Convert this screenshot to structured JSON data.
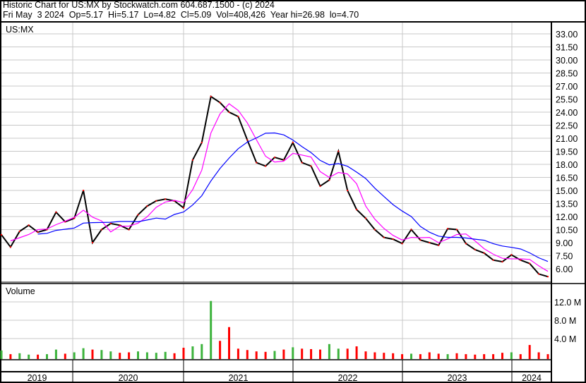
{
  "header": {
    "line1": "Historic Chart for US:MX by Stockwatch.com 604.687.1500 - (c) 2024",
    "line2": "Fri May  3 2024  Op=5.17  Hi=5.17  Lo=4.82  Cl=5.09  Vol=408,426  Year hi=26.98  lo=4.70"
  },
  "chart_data": {
    "type": "line",
    "symbol": "US:MX",
    "price_axis": {
      "ticks": [
        "33.00",
        "31.50",
        "30.00",
        "28.50",
        "27.00",
        "25.50",
        "24.00",
        "22.50",
        "21.00",
        "19.50",
        "18.00",
        "16.50",
        "15.00",
        "13.50",
        "12.00",
        "10.50",
        "9.00",
        "7.50",
        "6.00"
      ],
      "ylim": [
        4.5,
        33.0
      ],
      "grid": true
    },
    "x_axis": {
      "ticks": [
        "2019",
        "2020",
        "2021",
        "2022",
        "2023",
        "2024"
      ]
    },
    "x": [
      "2019-05",
      "2019-06",
      "2019-07",
      "2019-08",
      "2019-09",
      "2019-10",
      "2019-11",
      "2019-12",
      "2020-01",
      "2020-02",
      "2020-03",
      "2020-04",
      "2020-05",
      "2020-06",
      "2020-07",
      "2020-08",
      "2020-09",
      "2020-10",
      "2020-11",
      "2020-12",
      "2021-01",
      "2021-02",
      "2021-03",
      "2021-04",
      "2021-05",
      "2021-06",
      "2021-07",
      "2021-08",
      "2021-09",
      "2021-10",
      "2021-11",
      "2021-12",
      "2022-01",
      "2022-02",
      "2022-03",
      "2022-04",
      "2022-05",
      "2022-06",
      "2022-07",
      "2022-08",
      "2022-09",
      "2022-10",
      "2022-11",
      "2022-12",
      "2023-01",
      "2023-02",
      "2023-03",
      "2023-04",
      "2023-05",
      "2023-06",
      "2023-07",
      "2023-08",
      "2023-09",
      "2023-10",
      "2023-11",
      "2023-12",
      "2024-01",
      "2024-02",
      "2024-03",
      "2024-04",
      "2024-05"
    ],
    "close": [
      9.9,
      8.5,
      10.3,
      11.0,
      10.2,
      10.5,
      12.5,
      11.4,
      11.8,
      15.0,
      9.0,
      10.5,
      11.2,
      11.0,
      10.5,
      12.2,
      13.2,
      13.8,
      14.0,
      13.8,
      13.0,
      18.5,
      20.5,
      25.8,
      25.1,
      24.0,
      23.5,
      20.8,
      18.2,
      17.8,
      18.8,
      18.5,
      20.5,
      18.2,
      17.8,
      15.5,
      16.2,
      19.5,
      15.0,
      12.8,
      11.8,
      10.5,
      9.6,
      9.4,
      8.9,
      10.5,
      9.3,
      9.0,
      8.7,
      10.6,
      10.5,
      8.9,
      8.2,
      7.8,
      7.0,
      6.8,
      7.6,
      7.0,
      6.6,
      5.4,
      5.09
    ],
    "moving_average_colors": {
      "short": "#ff00ff",
      "long": "#0000ff"
    },
    "volume": {
      "title": "Volume",
      "ticks": [
        "12.0 M",
        "8.0 M",
        "4.0 M"
      ],
      "ylim_millions": [
        0,
        16
      ],
      "values_millions": [
        1.4,
        0.6,
        0.8,
        0.5,
        0.5,
        0.6,
        1.6,
        0.7,
        1.0,
        1.9,
        1.6,
        1.5,
        1.2,
        0.9,
        1.0,
        1.2,
        1.0,
        0.9,
        1.1,
        0.8,
        2.0,
        2.3,
        2.8,
        12.2,
        3.5,
        6.5,
        1.8,
        1.5,
        1.2,
        1.1,
        1.3,
        1.6,
        2.1,
        1.8,
        1.7,
        1.6,
        2.8,
        1.8,
        1.8,
        2.3,
        1.2,
        1.0,
        0.9,
        0.8,
        0.6,
        0.7,
        0.6,
        1.0,
        0.7,
        0.6,
        0.8,
        0.6,
        0.5,
        0.6,
        0.6,
        0.9,
        1.0,
        0.6,
        2.6,
        1.0,
        0.6
      ],
      "up_color": "#3cb33c",
      "down_color": "#ff0000"
    }
  }
}
